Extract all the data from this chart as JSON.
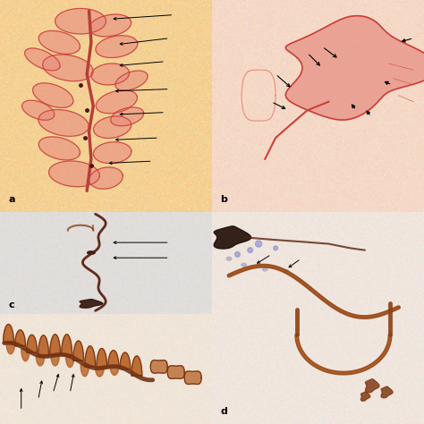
{
  "figure_bg": "#f5f5f5",
  "panel_a_bg": [
    0.96,
    0.82,
    0.58
  ],
  "panel_b_bg": [
    0.96,
    0.85,
    0.78
  ],
  "panel_c_bg": [
    0.88,
    0.87,
    0.86
  ],
  "panel_d_bg": [
    0.94,
    0.9,
    0.87
  ],
  "panel_e_bg": [
    0.94,
    0.9,
    0.85
  ],
  "tissue_red": [
    0.8,
    0.25,
    0.22
  ],
  "tissue_pink": [
    0.9,
    0.55,
    0.5
  ],
  "tissue_dark": [
    0.2,
    0.08,
    0.04
  ],
  "tissue_brown": [
    0.55,
    0.25,
    0.08
  ],
  "tissue_brown2": [
    0.7,
    0.35,
    0.1
  ],
  "arrow_color": "black",
  "label_fontsize": 8
}
